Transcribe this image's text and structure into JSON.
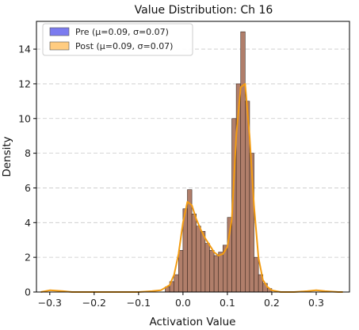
{
  "chart_data": {
    "type": "histogram",
    "title": "Value Distribution: Ch 16",
    "xlabel": "Activation Value",
    "ylabel": "Density",
    "xlim": [
      -0.33,
      0.375
    ],
    "ylim": [
      0,
      15.6
    ],
    "xticks": [
      -0.3,
      -0.2,
      -0.1,
      0.0,
      0.1,
      0.2,
      0.3
    ],
    "xtick_labels": [
      "−0.3",
      "−0.2",
      "−0.1",
      "0.0",
      "0.1",
      "0.2",
      "0.3"
    ],
    "yticks": [
      0,
      2,
      4,
      6,
      8,
      10,
      12,
      14
    ],
    "ytick_labels": [
      "0",
      "2",
      "4",
      "6",
      "8",
      "10",
      "12",
      "14"
    ],
    "grid": "y-dashed",
    "legend_position": "top-left",
    "bin_edges": [
      -0.04,
      -0.03,
      -0.02,
      -0.01,
      0.0,
      0.01,
      0.02,
      0.03,
      0.04,
      0.05,
      0.06,
      0.07,
      0.08,
      0.09,
      0.1,
      0.11,
      0.12,
      0.13,
      0.14,
      0.15,
      0.16,
      0.17,
      0.18,
      0.19,
      0.2
    ],
    "density": [
      0.3,
      0.6,
      1.0,
      2.4,
      4.8,
      5.9,
      4.5,
      3.8,
      3.5,
      2.8,
      2.4,
      2.1,
      2.3,
      2.7,
      4.3,
      10.0,
      12.0,
      15.0,
      11.0,
      8.0,
      2.0,
      1.0,
      0.5,
      0.2
    ],
    "series": [
      {
        "name": "Pre (μ=0.09, σ=0.07)",
        "color": "#7b7bef"
      },
      {
        "name": "Post (μ=0.09, σ=0.07)",
        "color": "#ffcc80"
      }
    ],
    "kde": {
      "color": "#f39c12",
      "x": [
        -0.32,
        -0.3,
        -0.27,
        -0.25,
        -0.2,
        -0.15,
        -0.1,
        -0.07,
        -0.05,
        -0.03,
        -0.02,
        -0.01,
        0.0,
        0.01,
        0.02,
        0.03,
        0.04,
        0.05,
        0.06,
        0.07,
        0.08,
        0.09,
        0.1,
        0.11,
        0.12,
        0.13,
        0.14,
        0.15,
        0.16,
        0.17,
        0.18,
        0.19,
        0.2,
        0.22,
        0.25,
        0.28,
        0.3,
        0.32,
        0.35,
        0.36
      ],
      "y": [
        0.0,
        0.1,
        0.05,
        0.0,
        0.0,
        0.0,
        0.0,
        0.05,
        0.1,
        0.4,
        1.0,
        2.2,
        4.0,
        5.2,
        5.0,
        4.2,
        3.6,
        3.1,
        2.7,
        2.3,
        2.1,
        2.2,
        2.6,
        4.2,
        9.0,
        11.8,
        12.0,
        9.0,
        5.0,
        2.0,
        0.7,
        0.3,
        0.1,
        0.0,
        0.0,
        0.05,
        0.1,
        0.05,
        0.0,
        0.0
      ]
    }
  }
}
